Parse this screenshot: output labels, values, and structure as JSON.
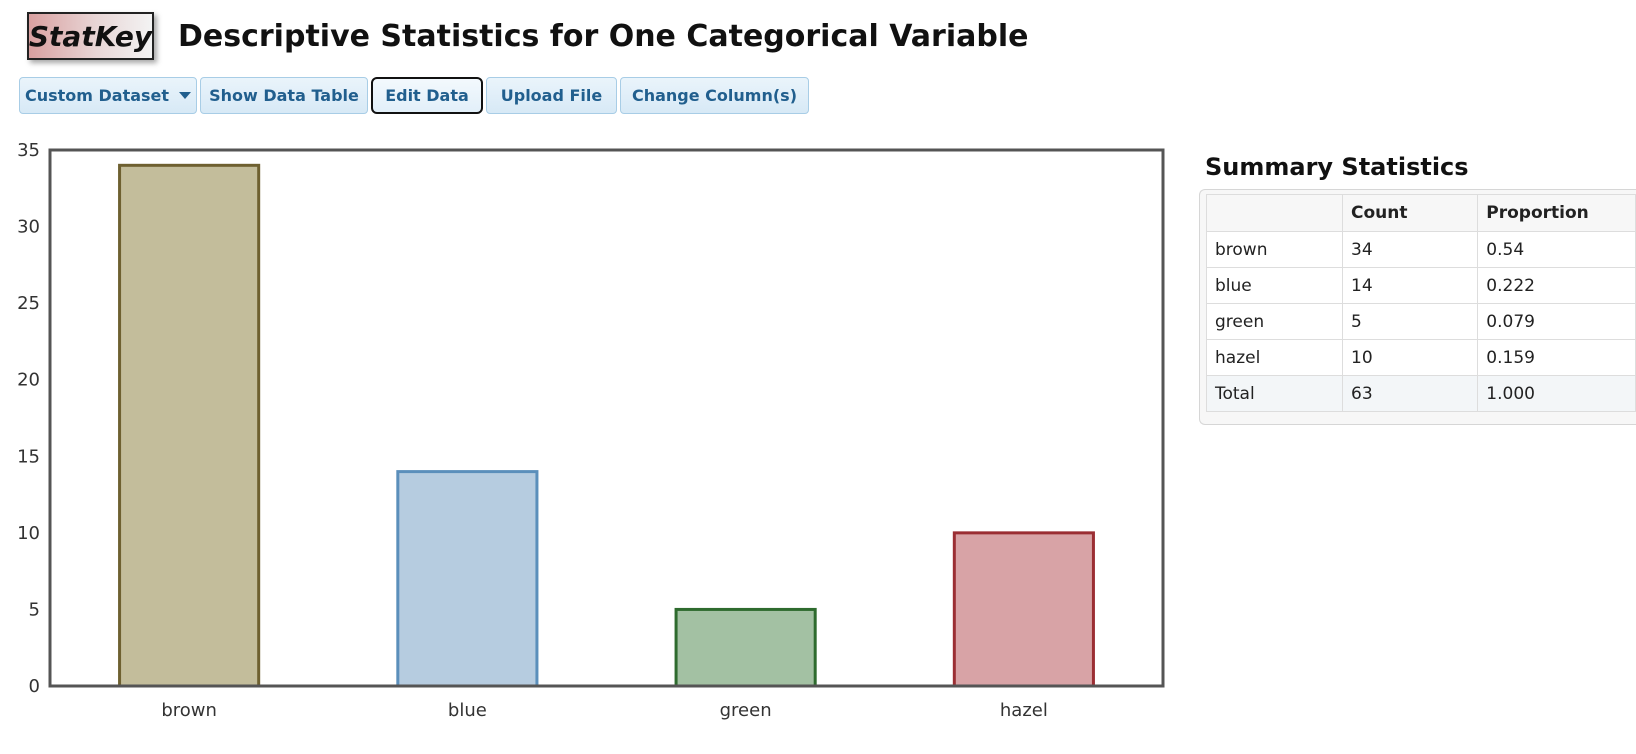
{
  "app": {
    "logo_text": "StatKey",
    "title": "Descriptive Statistics for One Categorical Variable"
  },
  "toolbar": {
    "custom_dataset_label": "Custom Dataset",
    "show_data_table_label": "Show Data Table",
    "edit_data_label": "Edit Data",
    "upload_file_label": "Upload File",
    "change_columns_label": "Change Column(s)"
  },
  "chart_data": {
    "type": "bar",
    "categories": [
      "brown",
      "blue",
      "green",
      "hazel"
    ],
    "values": [
      34,
      14,
      5,
      10
    ],
    "title": "",
    "xlabel": "",
    "ylabel": "",
    "ylim": [
      0,
      35
    ],
    "yticks": [
      0,
      5,
      10,
      15,
      20,
      25,
      30,
      35
    ],
    "grid": false,
    "colors": {
      "brown": {
        "fill": "#c3bd9b",
        "stroke": "#6e6030"
      },
      "blue": {
        "fill": "#b6cce0",
        "stroke": "#5b8fbb"
      },
      "green": {
        "fill": "#a3c1a3",
        "stroke": "#2e6b2e"
      },
      "hazel": {
        "fill": "#d8a3a6",
        "stroke": "#9b2e33"
      }
    }
  },
  "summary": {
    "title": "Summary Statistics",
    "headers": [
      "",
      "Count",
      "Proportion"
    ],
    "rows": [
      {
        "label": "brown",
        "count": "34",
        "proportion": "0.54"
      },
      {
        "label": "blue",
        "count": "14",
        "proportion": "0.222"
      },
      {
        "label": "green",
        "count": "5",
        "proportion": "0.079"
      },
      {
        "label": "hazel",
        "count": "10",
        "proportion": "0.159"
      }
    ],
    "total": {
      "label": "Total",
      "count": "63",
      "proportion": "1.000"
    }
  }
}
